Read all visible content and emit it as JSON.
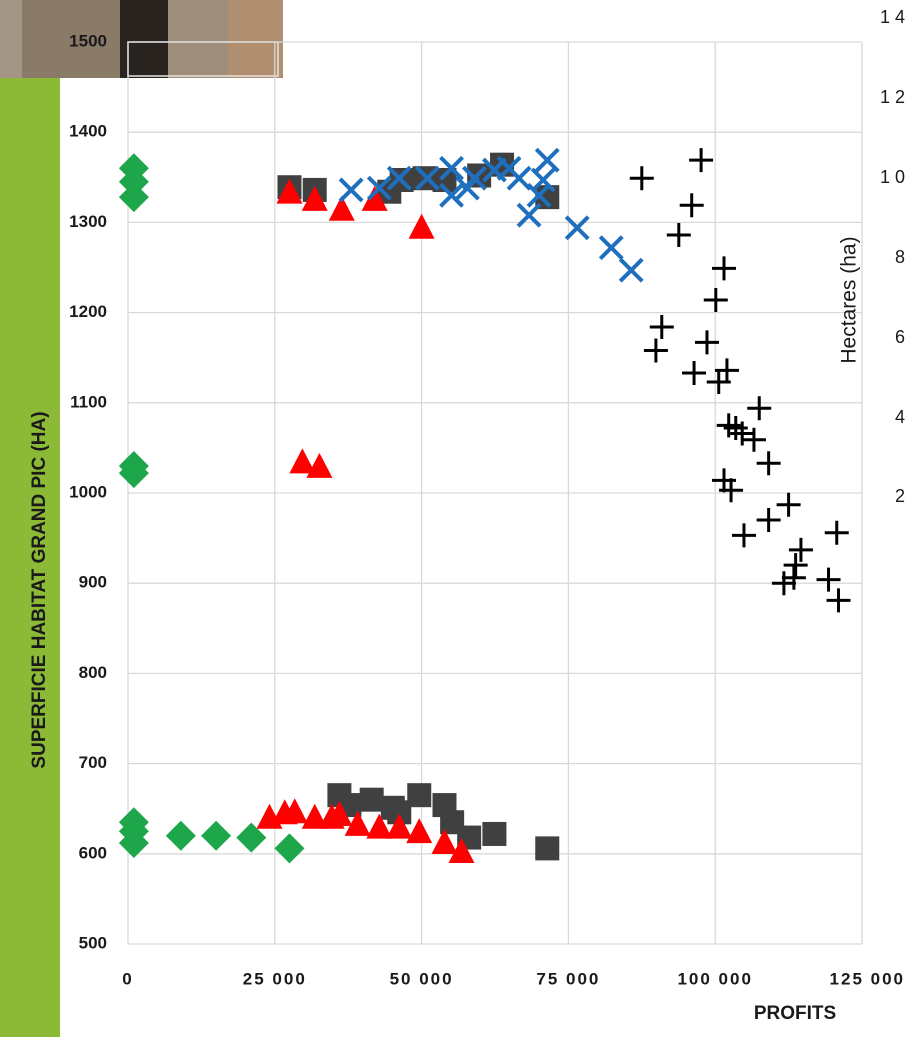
{
  "chart_data": {
    "type": "scatter",
    "ylabel": "SUPERFICIE HABITAT GRAND PIC (HA)",
    "xlabel": "PROFITS",
    "xlim": [
      0,
      125000
    ],
    "ylim": [
      500,
      1500
    ],
    "xticks": [
      0,
      {
        "value": 25000,
        "label": "25 000"
      },
      {
        "value": 50000,
        "label": "50 000"
      },
      {
        "value": 75000,
        "label": "75 000"
      },
      {
        "value": 100000,
        "label": "100 000"
      },
      {
        "value": 125000,
        "label": "125 000"
      }
    ],
    "yticks": [
      500,
      600,
      700,
      800,
      900,
      1000,
      1100,
      1200,
      1300,
      1400,
      1500
    ],
    "grid": true,
    "series": [
      {
        "marker": "diamond",
        "color": "#1ea64b",
        "x": [
          1000,
          1000,
          1000,
          1000,
          1000,
          1000,
          1000,
          1000,
          9000,
          15000,
          21000,
          27500
        ],
        "y": [
          1360,
          1345,
          1328,
          1030,
          1022,
          635,
          625,
          612,
          620,
          620,
          618,
          606
        ]
      },
      {
        "marker": "square",
        "color": "#404040",
        "x": [
          27500,
          31800,
          44500,
          46600,
          53900,
          59800,
          63700,
          71400,
          50500,
          36000,
          37700,
          41500,
          45100,
          49600,
          53900,
          55200,
          58100,
          62400,
          71400,
          46200
        ],
        "y": [
          1339,
          1336,
          1334,
          1347,
          1347,
          1352,
          1364,
          1328,
          1349,
          665,
          654,
          660,
          651,
          665,
          654,
          635,
          618,
          622,
          606,
          646
        ]
      },
      {
        "marker": "triangle",
        "color": "#ff0000",
        "x": [
          27500,
          31800,
          36400,
          42000,
          50000,
          29700,
          32600,
          24100,
          26700,
          28400,
          31800,
          34700,
          36000,
          39100,
          42800,
          46200,
          49600,
          53900,
          56800
        ],
        "y": [
          1333,
          1325,
          1314,
          1325,
          1294,
          1034,
          1029,
          640,
          645,
          646,
          640,
          640,
          643,
          632,
          629,
          629,
          624,
          612,
          602
        ]
      },
      {
        "marker": "x",
        "color": "#1f6fbf",
        "x": [
          38000,
          42800,
          46200,
          51000,
          55100,
          55100,
          57800,
          59000,
          62400,
          64900,
          66600,
          68300,
          70700,
          71400,
          70000,
          76500,
          82300,
          85700
        ],
        "y": [
          1336,
          1338,
          1349,
          1349,
          1360,
          1330,
          1338,
          1349,
          1358,
          1360,
          1349,
          1308,
          1347,
          1369,
          1330,
          1294,
          1272,
          1247
        ]
      },
      {
        "marker": "plus",
        "color": "#000000",
        "x": [
          87500,
          97600,
          96000,
          93800,
          101500,
          100100,
          90900,
          89900,
          98600,
          96400,
          102000,
          100600,
          102300,
          103500,
          104600,
          107500,
          106600,
          109100,
          101500,
          102700,
          112500,
          109100,
          104900,
          120700,
          114600,
          113700,
          111700,
          113400,
          119300,
          121000
        ],
        "y": [
          1349,
          1369,
          1319,
          1286,
          1249,
          1214,
          1184,
          1158,
          1167,
          1133,
          1136,
          1123,
          1075,
          1072,
          1066,
          1094,
          1059,
          1033,
          1014,
          1003,
          987,
          970,
          953,
          956,
          937,
          920,
          900,
          906,
          904,
          881
        ]
      }
    ],
    "secondary_axis_fragment": {
      "label": "Hectares (ha)",
      "tick_labels": [
        "1 4",
        "1 2",
        "1 0",
        "8",
        "6",
        "4",
        "2"
      ]
    }
  }
}
